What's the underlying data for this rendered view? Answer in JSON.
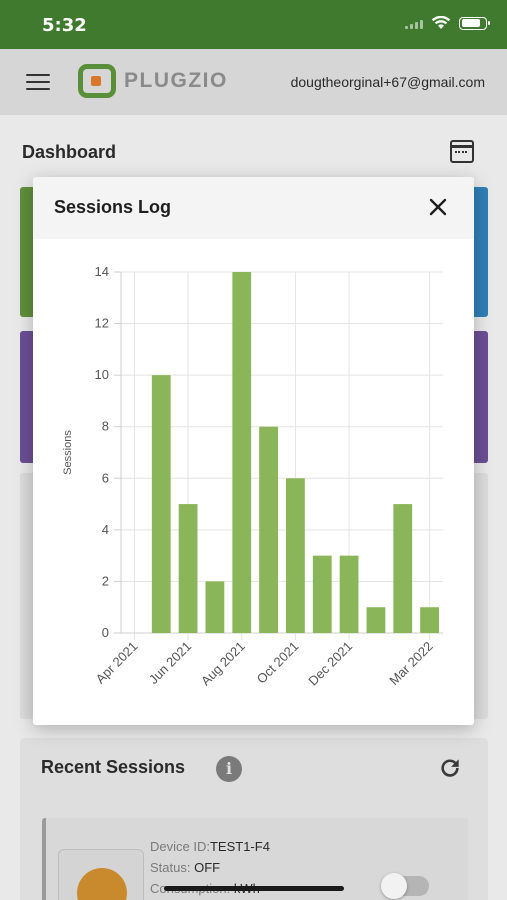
{
  "status_bar": {
    "time": "5:32"
  },
  "header": {
    "logo_text": "PLUGZIO",
    "user_email": "dougtheorginal+67@gmail.com"
  },
  "dashboard": {
    "title": "Dashboard"
  },
  "recent_sessions": {
    "title": "Recent Sessions",
    "info_glyph": "i",
    "device_label": "Device ID:",
    "device_id": "TEST1-F4",
    "status_label": "Status:",
    "status_value": "OFF",
    "consumption_label": "Consumption:",
    "consumption_unit": "kWh"
  },
  "modal": {
    "title": "Sessions Log"
  },
  "colors": {
    "bar": "#8ab659",
    "header_green": "#3f7a2f"
  },
  "chart_data": {
    "type": "bar",
    "ylabel": "Sessions",
    "xlabel": "",
    "ylim": [
      0,
      14
    ],
    "yticks": [
      0,
      2,
      4,
      6,
      8,
      10,
      12,
      14
    ],
    "grid": true,
    "categories": [
      "Apr 2021",
      "May 2021",
      "Jun 2021",
      "Jul 2021",
      "Aug 2021",
      "Sep 2021",
      "Oct 2021",
      "Nov 2021",
      "Dec 2021",
      "Jan 2022",
      "Feb 2022",
      "Mar 2022"
    ],
    "values": [
      0,
      10,
      5,
      2,
      14,
      8,
      6,
      3,
      3,
      1,
      5,
      1
    ],
    "xtick_labels": [
      "Apr 2021",
      "Jun 2021",
      "Aug 2021",
      "Oct 2021",
      "Dec 2021",
      "Mar 2022"
    ]
  }
}
